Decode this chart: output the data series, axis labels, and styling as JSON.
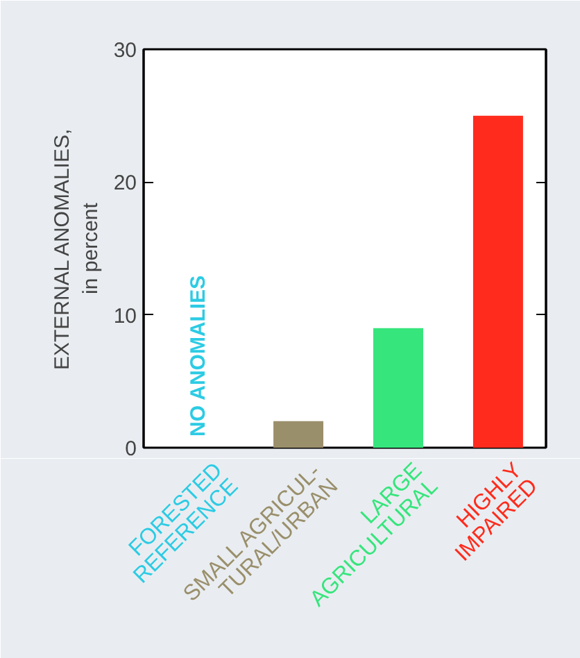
{
  "chart_data": {
    "type": "bar",
    "ylabel": "EXTERNAL ANOMALIES,\nin percent",
    "categories": [
      "FORESTED\nREFERENCE",
      "SMALL AGRICUL-\nTURAL/URBAN",
      "LARGE\nAGRICULTURAL",
      "HIGHLY\nIMPAIRED"
    ],
    "values": [
      0,
      2,
      9,
      25
    ],
    "colors": [
      "#2ccbe4",
      "#9a8f6b",
      "#36e57c",
      "#ff2b1c"
    ],
    "ylim": [
      0,
      30
    ],
    "yticks": [
      0,
      10,
      20,
      30
    ],
    "grid": false,
    "annotations": [
      "NO ANOMALIES"
    ]
  }
}
